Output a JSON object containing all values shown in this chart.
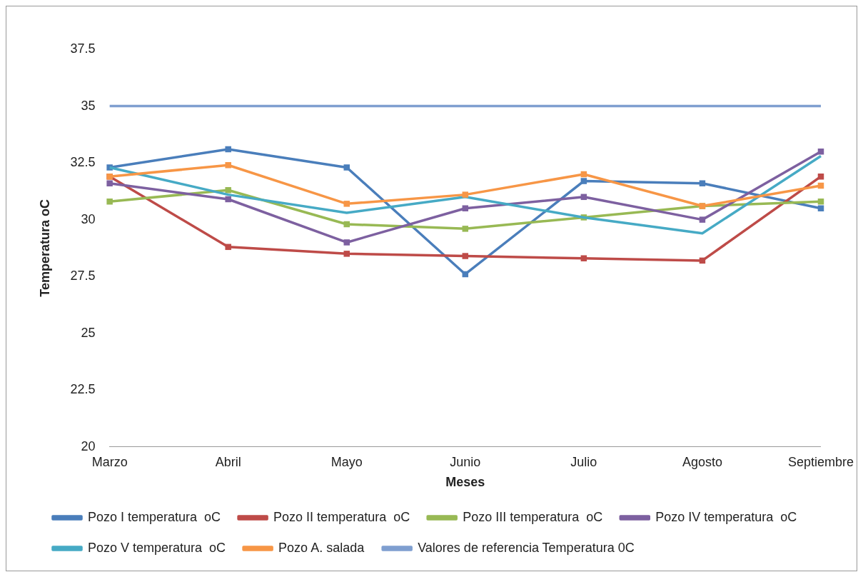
{
  "chart_data": {
    "type": "line",
    "xlabel": "Meses",
    "ylabel": "Temperatura oC",
    "categories": [
      "Marzo",
      "Abril",
      "Mayo",
      "Junio",
      "Julio",
      "Agosto",
      "Septiembre"
    ],
    "ylim": [
      20,
      37.5
    ],
    "yticks": [
      20,
      22.5,
      25,
      27.5,
      30,
      32.5,
      35,
      37.5
    ],
    "grid": false,
    "legend": "bottom",
    "marker": "square",
    "line_style": "solid",
    "series": [
      {
        "name": "Pozo I temperatura  oC",
        "color": "#4a7ebb",
        "values": [
          32.3,
          33.1,
          32.3,
          27.6,
          31.7,
          31.6,
          30.5
        ]
      },
      {
        "name": "Pozo II temperatura  oC",
        "color": "#be4b48",
        "values": [
          31.9,
          28.8,
          28.5,
          28.4,
          28.3,
          28.2,
          31.9
        ]
      },
      {
        "name": "Pozo III temperatura  oC",
        "color": "#98b954",
        "values": [
          30.8,
          31.3,
          29.8,
          29.6,
          30.1,
          30.6,
          30.8
        ]
      },
      {
        "name": "Pozo IV temperatura  oC",
        "color": "#7d60a0",
        "values": [
          31.6,
          30.9,
          29.0,
          30.5,
          31.0,
          30.0,
          33.0
        ]
      },
      {
        "name": "Pozo V temperatura  oC",
        "color": "#46aac5",
        "marker": "none",
        "values": [
          32.3,
          31.1,
          30.3,
          31.0,
          30.1,
          29.4,
          32.8
        ]
      },
      {
        "name": "Pozo A. salada",
        "color": "#f79646",
        "values": [
          31.9,
          32.4,
          30.7,
          31.1,
          32.0,
          30.6,
          31.5
        ]
      },
      {
        "name": "Valores de referencia Temperatura 0C",
        "color": "#7f9fd0",
        "marker": "none",
        "values": [
          35,
          35,
          35,
          35,
          35,
          35,
          35
        ]
      }
    ]
  }
}
